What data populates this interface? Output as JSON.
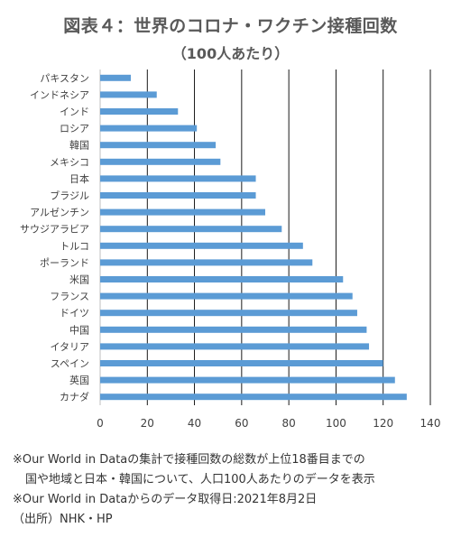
{
  "chart_data": {
    "type": "bar",
    "orientation": "horizontal",
    "title": "図表４：世界のコロナ・ワクチン接種回数",
    "subtitle": "（100人あたり）",
    "categories": [
      "パキスタン",
      "インドネシア",
      "インド",
      "ロシア",
      "韓国",
      "メキシコ",
      "日本",
      "ブラジル",
      "アルゼンチン",
      "サウジアラビア",
      "トルコ",
      "ポーランド",
      "米国",
      "フランス",
      "ドイツ",
      "中国",
      "イタリア",
      "スペイン",
      "英国",
      "カナダ"
    ],
    "values": [
      13,
      24,
      33,
      41,
      49,
      51,
      66,
      66,
      70,
      77,
      86,
      90,
      103,
      107,
      109,
      113,
      114,
      120,
      125,
      130
    ],
    "xlim": [
      0,
      140
    ],
    "xticks": [
      "0",
      "20",
      "40",
      "60",
      "80",
      "100",
      "120",
      "140"
    ],
    "xlabel": "",
    "ylabel": "",
    "grid": "vertical",
    "bar_color": "#5b9bd5",
    "grid_color": "#000000"
  },
  "notes": {
    "line1": "※Our World in Dataの集計で接種回数の総数が上位18番目までの",
    "line2": "国や地域と日本・韓国について、人口100人あたりのデータを表示",
    "line3": "※Our World in Dataからのデータ取得日:2021年8月2日",
    "line4": "（出所）NHK・HP"
  }
}
